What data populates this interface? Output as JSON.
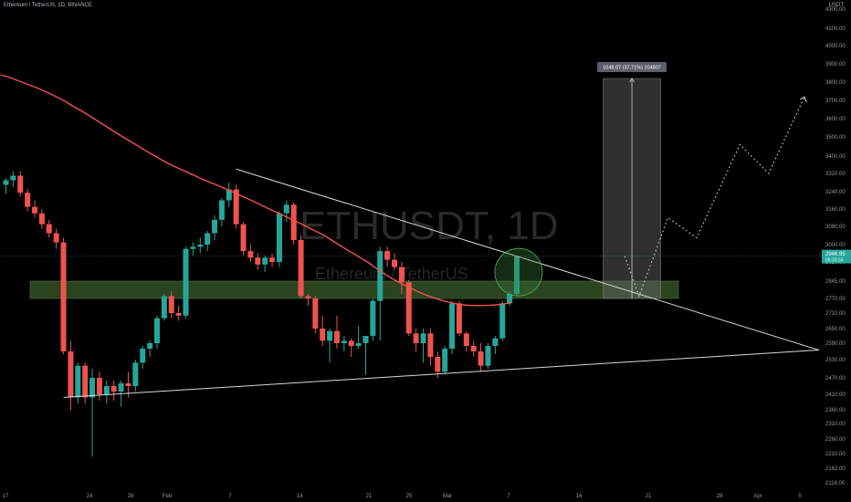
{
  "header": {
    "symbol_description": "Ethereum / TetherUS, 1D, BINANCE",
    "currency": "USDT"
  },
  "watermark": {
    "ticker": "ETHUSDT, 1D",
    "name": "Ethereum / TetherUS"
  },
  "chart_data": {
    "type": "candlestick",
    "title": "Ethereum / TetherUS, 1D, BINANCE",
    "y_axis": {
      "unit": "USDT",
      "ticks": [
        "4300.00",
        "4100.00",
        "4000.00",
        "3900.00",
        "3800.00",
        "3700.00",
        "3600.00",
        "3500.00",
        "3400.00",
        "3320.00",
        "3240.00",
        "3160.00",
        "3080.00",
        "3000.00",
        "2920.00",
        "2845.00",
        "2770.00",
        "2710.00",
        "2650.00",
        "2590.00",
        "2530.00",
        "2470.00",
        "2410.00",
        "2360.00",
        "2310.00",
        "2260.00",
        "2210.00",
        "2162.00",
        "2116.00"
      ]
    },
    "x_axis": {
      "ticks": [
        "17",
        "24",
        "28",
        "Feb",
        "7",
        "14",
        "21",
        "25",
        "Mar",
        "7",
        "14",
        "21",
        "28",
        "Apr",
        "5"
      ]
    },
    "candles": [
      {
        "o": 3270,
        "h": 3300,
        "l": 3230,
        "c": 3290
      },
      {
        "o": 3290,
        "h": 3330,
        "l": 3260,
        "c": 3310
      },
      {
        "o": 3310,
        "h": 3330,
        "l": 3220,
        "c": 3235
      },
      {
        "o": 3235,
        "h": 3250,
        "l": 3150,
        "c": 3170
      },
      {
        "o": 3170,
        "h": 3200,
        "l": 3120,
        "c": 3140
      },
      {
        "o": 3140,
        "h": 3160,
        "l": 3070,
        "c": 3090
      },
      {
        "o": 3090,
        "h": 3110,
        "l": 3030,
        "c": 3050
      },
      {
        "o": 3050,
        "h": 3070,
        "l": 2980,
        "c": 3010
      },
      {
        "o": 3010,
        "h": 3030,
        "l": 2550,
        "c": 2560
      },
      {
        "o": 2560,
        "h": 2600,
        "l": 2360,
        "c": 2400
      },
      {
        "o": 2400,
        "h": 2520,
        "l": 2380,
        "c": 2510
      },
      {
        "o": 2510,
        "h": 2520,
        "l": 2380,
        "c": 2400
      },
      {
        "o": 2400,
        "h": 2500,
        "l": 2200,
        "c": 2470
      },
      {
        "o": 2470,
        "h": 2490,
        "l": 2390,
        "c": 2410
      },
      {
        "o": 2410,
        "h": 2460,
        "l": 2380,
        "c": 2440
      },
      {
        "o": 2440,
        "h": 2460,
        "l": 2390,
        "c": 2420
      },
      {
        "o": 2420,
        "h": 2460,
        "l": 2370,
        "c": 2450
      },
      {
        "o": 2450,
        "h": 2490,
        "l": 2400,
        "c": 2440
      },
      {
        "o": 2440,
        "h": 2530,
        "l": 2420,
        "c": 2520
      },
      {
        "o": 2520,
        "h": 2580,
        "l": 2500,
        "c": 2570
      },
      {
        "o": 2570,
        "h": 2600,
        "l": 2540,
        "c": 2590
      },
      {
        "o": 2590,
        "h": 2700,
        "l": 2570,
        "c": 2690
      },
      {
        "o": 2690,
        "h": 2790,
        "l": 2680,
        "c": 2780
      },
      {
        "o": 2780,
        "h": 2800,
        "l": 2690,
        "c": 2710
      },
      {
        "o": 2710,
        "h": 2740,
        "l": 2680,
        "c": 2700
      },
      {
        "o": 2700,
        "h": 2990,
        "l": 2690,
        "c": 2980
      },
      {
        "o": 2980,
        "h": 3010,
        "l": 2950,
        "c": 2990
      },
      {
        "o": 2990,
        "h": 3030,
        "l": 2960,
        "c": 3000
      },
      {
        "o": 3000,
        "h": 3060,
        "l": 2970,
        "c": 3050
      },
      {
        "o": 3050,
        "h": 3130,
        "l": 3020,
        "c": 3110
      },
      {
        "o": 3110,
        "h": 3210,
        "l": 3080,
        "c": 3200
      },
      {
        "o": 3200,
        "h": 3280,
        "l": 3170,
        "c": 3250
      },
      {
        "o": 3250,
        "h": 3270,
        "l": 3070,
        "c": 3090
      },
      {
        "o": 3090,
        "h": 3100,
        "l": 2950,
        "c": 2970
      },
      {
        "o": 2970,
        "h": 3000,
        "l": 2920,
        "c": 2940
      },
      {
        "o": 2940,
        "h": 2960,
        "l": 2890,
        "c": 2910
      },
      {
        "o": 2910,
        "h": 2950,
        "l": 2880,
        "c": 2940
      },
      {
        "o": 2940,
        "h": 2960,
        "l": 2900,
        "c": 2920
      },
      {
        "o": 2920,
        "h": 3150,
        "l": 2900,
        "c": 3140
      },
      {
        "o": 3140,
        "h": 3200,
        "l": 3100,
        "c": 3180
      },
      {
        "o": 3180,
        "h": 3190,
        "l": 3000,
        "c": 3020
      },
      {
        "o": 3020,
        "h": 3040,
        "l": 2770,
        "c": 2780
      },
      {
        "o": 2780,
        "h": 2790,
        "l": 2740,
        "c": 2770
      },
      {
        "o": 2770,
        "h": 2780,
        "l": 2630,
        "c": 2650
      },
      {
        "o": 2650,
        "h": 2700,
        "l": 2580,
        "c": 2600
      },
      {
        "o": 2600,
        "h": 2650,
        "l": 2520,
        "c": 2640
      },
      {
        "o": 2640,
        "h": 2700,
        "l": 2570,
        "c": 2590
      },
      {
        "o": 2590,
        "h": 2620,
        "l": 2560,
        "c": 2600
      },
      {
        "o": 2600,
        "h": 2610,
        "l": 2540,
        "c": 2580
      },
      {
        "o": 2580,
        "h": 2660,
        "l": 2570,
        "c": 2590
      },
      {
        "o": 2590,
        "h": 2620,
        "l": 2480,
        "c": 2620
      },
      {
        "o": 2620,
        "h": 2770,
        "l": 2600,
        "c": 2760
      },
      {
        "o": 2760,
        "h": 2990,
        "l": 2600,
        "c": 2970
      },
      {
        "o": 2970,
        "h": 2990,
        "l": 2900,
        "c": 2930
      },
      {
        "o": 2930,
        "h": 2960,
        "l": 2890,
        "c": 2900
      },
      {
        "o": 2900,
        "h": 2920,
        "l": 2790,
        "c": 2840
      },
      {
        "o": 2840,
        "h": 2850,
        "l": 2620,
        "c": 2630
      },
      {
        "o": 2630,
        "h": 2650,
        "l": 2560,
        "c": 2590
      },
      {
        "o": 2590,
        "h": 2650,
        "l": 2520,
        "c": 2630
      },
      {
        "o": 2630,
        "h": 2650,
        "l": 2510,
        "c": 2540
      },
      {
        "o": 2540,
        "h": 2560,
        "l": 2470,
        "c": 2490
      },
      {
        "o": 2490,
        "h": 2580,
        "l": 2480,
        "c": 2570
      },
      {
        "o": 2570,
        "h": 2760,
        "l": 2550,
        "c": 2750
      },
      {
        "o": 2750,
        "h": 2760,
        "l": 2620,
        "c": 2630
      },
      {
        "o": 2630,
        "h": 2640,
        "l": 2560,
        "c": 2580
      },
      {
        "o": 2580,
        "h": 2600,
        "l": 2540,
        "c": 2560
      },
      {
        "o": 2560,
        "h": 2590,
        "l": 2490,
        "c": 2510
      },
      {
        "o": 2510,
        "h": 2590,
        "l": 2500,
        "c": 2580
      },
      {
        "o": 2580,
        "h": 2620,
        "l": 2550,
        "c": 2610
      },
      {
        "o": 2610,
        "h": 2760,
        "l": 2600,
        "c": 2750
      },
      {
        "o": 2750,
        "h": 2800,
        "l": 2740,
        "c": 2790
      },
      {
        "o": 2790,
        "h": 2950,
        "l": 2780,
        "c": 2946
      }
    ],
    "moving_average": {
      "color": "#ef5350",
      "values": [
        3840,
        3830,
        3815,
        3800,
        3785,
        3770,
        3752,
        3735,
        3715,
        3695,
        3670,
        3648,
        3625,
        3600,
        3575,
        3550,
        3525,
        3500,
        3478,
        3455,
        3432,
        3410,
        3390,
        3372,
        3355,
        3340,
        3325,
        3310,
        3296,
        3283,
        3270,
        3257,
        3243,
        3228,
        3213,
        3198,
        3182,
        3166,
        3150,
        3135,
        3120,
        3104,
        3088,
        3072,
        3056,
        3040,
        3020,
        3000,
        2980,
        2960,
        2940,
        2920,
        2900,
        2880,
        2862,
        2846,
        2830,
        2815,
        2800,
        2786,
        2775,
        2765,
        2757,
        2750,
        2745,
        2742,
        2741,
        2741,
        2742,
        2744,
        2748,
        2752
      ]
    },
    "support_zone": {
      "low": 2770,
      "high": 2845
    },
    "trendlines": [
      {
        "from": {
          "i": 8,
          "price": 2400
        },
        "to": {
          "i": 113,
          "price": 2565
        }
      },
      {
        "from": {
          "i": 32,
          "price": 3340
        },
        "to": {
          "i": 113,
          "price": 2565
        }
      }
    ],
    "measure_box": {
      "from_i": 83,
      "to_i": 91,
      "low": 2770,
      "high": 3820,
      "label": "1048.07 (37.71%) 104807"
    },
    "projection": [
      {
        "i": 86,
        "price": 2946
      },
      {
        "i": 88,
        "price": 2780
      },
      {
        "i": 92,
        "price": 3120
      },
      {
        "i": 96,
        "price": 3030
      },
      {
        "i": 102,
        "price": 3460
      },
      {
        "i": 106,
        "price": 3320
      },
      {
        "i": 111,
        "price": 3720
      }
    ],
    "last_price": {
      "value": "2946.95",
      "countdown": "05:33:33",
      "color": "#26a69a"
    },
    "colors": {
      "up": "#26a69a",
      "down": "#ef5350",
      "zone": "#3a5a2a",
      "ma": "#ef5350"
    },
    "grid": false
  }
}
